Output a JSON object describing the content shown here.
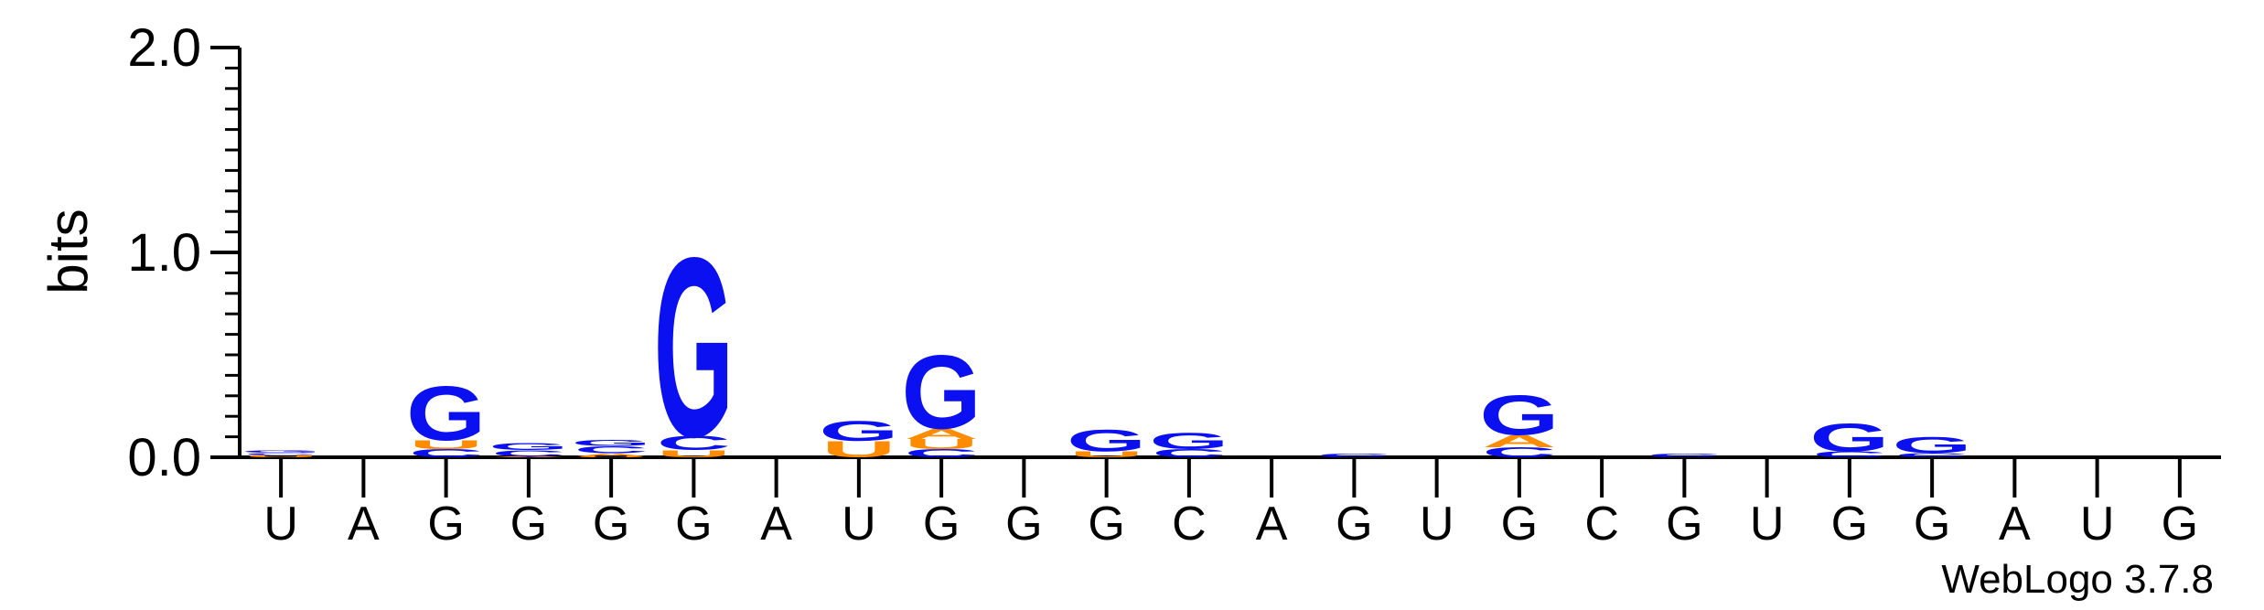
{
  "chart_data": {
    "type": "sequence-logo",
    "ylabel": "bits",
    "ylim": [
      0,
      2
    ],
    "yticks": [
      "0.0",
      "1.0",
      "2.0"
    ],
    "ytick_values": [
      0,
      1,
      2
    ],
    "categories": [
      "U",
      "A",
      "G",
      "G",
      "G",
      "G",
      "A",
      "U",
      "G",
      "G",
      "G",
      "C",
      "A",
      "G",
      "U",
      "G",
      "C",
      "G",
      "U",
      "G",
      "G",
      "A",
      "U",
      "G"
    ],
    "colors": {
      "G": "#0a10f0",
      "U": "#ff8c00",
      "A": "#ff8c00",
      "C": "#0a10f0"
    },
    "stacks": [
      [
        [
          "U",
          0.012
        ],
        [
          "C",
          0.01
        ],
        [
          "G",
          0.012
        ],
        [
          "A",
          0.004
        ]
      ],
      [],
      [
        [
          "C",
          0.04
        ],
        [
          "U",
          0.045
        ],
        [
          "G",
          0.27
        ]
      ],
      [
        [
          "A",
          0.005
        ],
        [
          "C",
          0.03
        ],
        [
          "G",
          0.035
        ]
      ],
      [
        [
          "U",
          0.005
        ],
        [
          "A",
          0.015
        ],
        [
          "C",
          0.035
        ],
        [
          "G",
          0.03
        ]
      ],
      [
        [
          "U",
          0.035
        ],
        [
          "C",
          0.07
        ],
        [
          "G",
          0.9
        ]
      ],
      [],
      [
        [
          "U",
          0.08
        ],
        [
          "G",
          0.1
        ]
      ],
      [
        [
          "C",
          0.04
        ],
        [
          "U",
          0.05
        ],
        [
          "A",
          0.05
        ],
        [
          "G",
          0.37
        ]
      ],
      [],
      [
        [
          "U",
          0.03
        ],
        [
          "G",
          0.11
        ]
      ],
      [
        [
          "C",
          0.04
        ],
        [
          "G",
          0.08
        ]
      ],
      [],
      [
        [
          "C",
          0.018
        ]
      ],
      [],
      [
        [
          "C",
          0.05
        ],
        [
          "A",
          0.06
        ],
        [
          "G",
          0.2
        ]
      ],
      [],
      [
        [
          "C",
          0.018
        ]
      ],
      [],
      [
        [
          "C",
          0.03
        ],
        [
          "G",
          0.14
        ]
      ],
      [
        [
          "C",
          0.02
        ],
        [
          "G",
          0.08
        ]
      ],
      [],
      [],
      []
    ],
    "credit": "WebLogo 3.7.8"
  }
}
